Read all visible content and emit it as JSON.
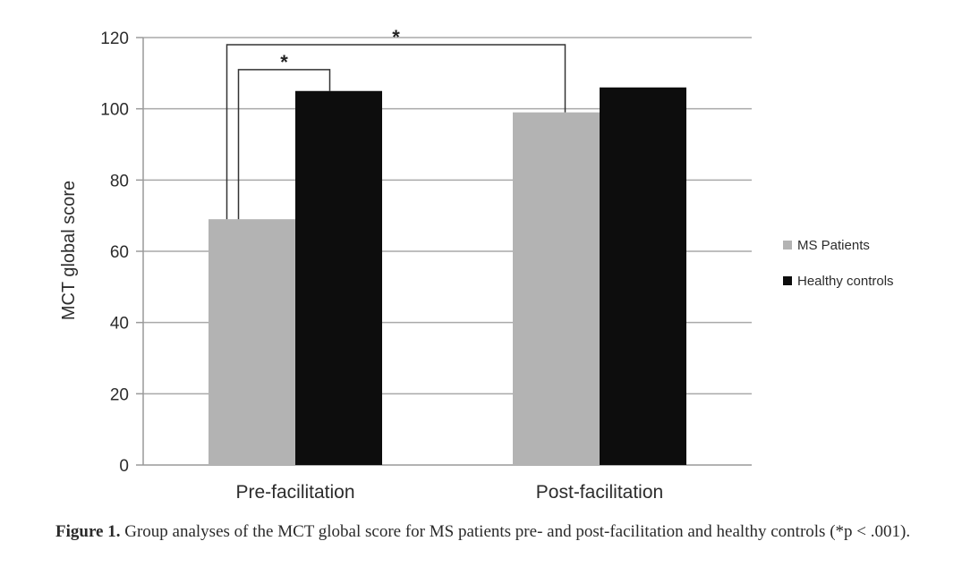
{
  "chart_data": {
    "type": "bar",
    "categories": [
      "Pre-facilitation",
      "Post-facilitation"
    ],
    "series": [
      {
        "name": "MS Patients",
        "values": [
          69,
          99
        ],
        "color": "#b3b3b3"
      },
      {
        "name": "Healthy controls",
        "values": [
          105,
          106
        ],
        "color": "#0d0d0d"
      }
    ],
    "ylabel": "MCT global score",
    "xlabel": "",
    "ylim": [
      0,
      120
    ],
    "yticks": [
      0,
      20,
      40,
      60,
      80,
      100,
      120
    ],
    "grid": true,
    "legend_position": "right",
    "significance": [
      {
        "label": "*",
        "from": {
          "category": 0,
          "series": 0
        },
        "to": {
          "category": 0,
          "series": 1
        },
        "level": 111
      },
      {
        "label": "*",
        "from": {
          "category": 0,
          "series": 0
        },
        "to": {
          "category": 1,
          "series": 0
        },
        "level": 118
      }
    ]
  },
  "caption": {
    "label": "Figure 1.",
    "text": "Group analyses of the MCT global score for MS patients pre- and post-facilitation and healthy controls (*p < .001)."
  }
}
